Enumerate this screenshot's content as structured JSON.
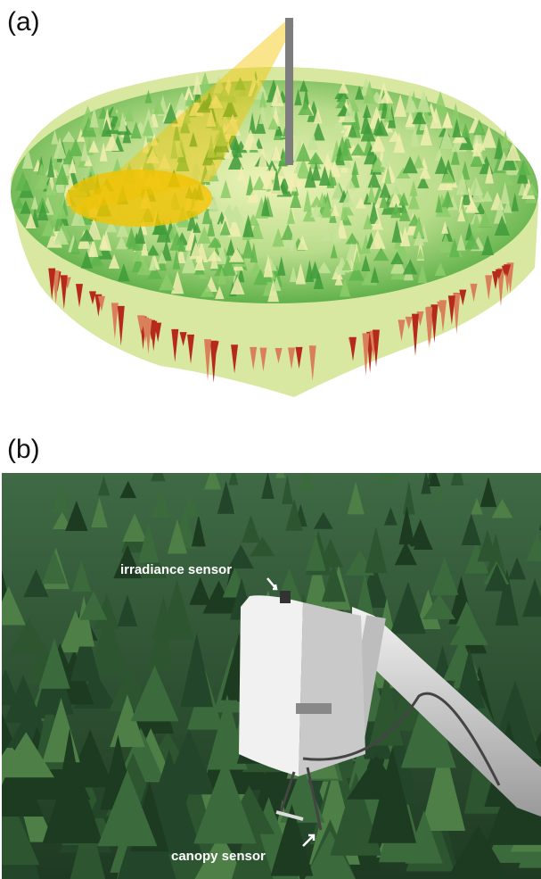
{
  "panels": [
    {
      "label": "(a)"
    },
    {
      "label": "(b)",
      "annotations": [
        "irradiance sensor",
        "canopy sensor"
      ]
    }
  ]
}
